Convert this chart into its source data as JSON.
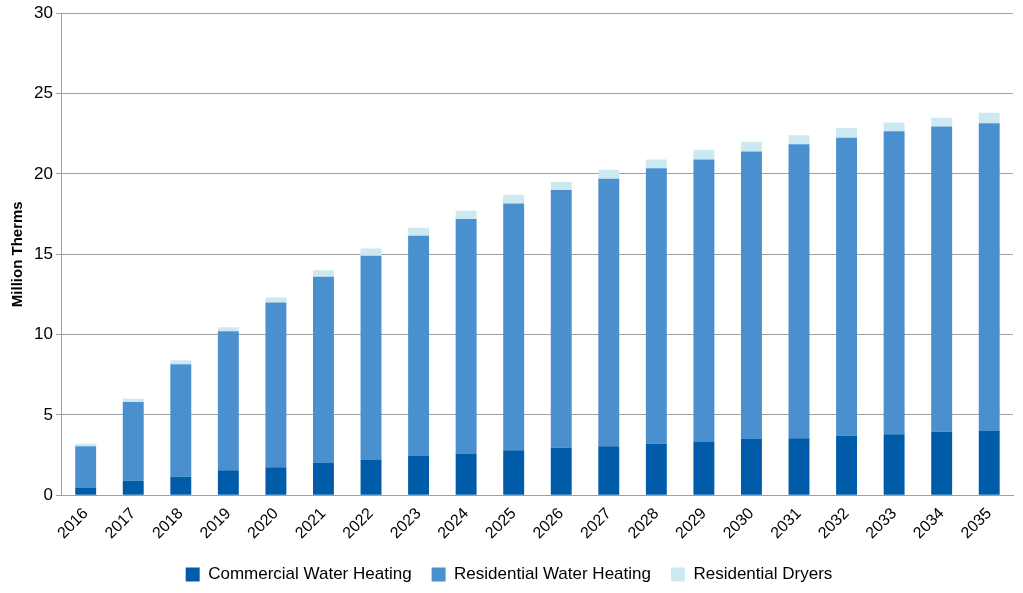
{
  "chart_data": {
    "type": "bar",
    "ylabel": "Million Therms",
    "stacked": true,
    "grid": "y",
    "legend": "bottom",
    "categories": [
      "2016",
      "2017",
      "2018",
      "2019",
      "2020",
      "2021",
      "2022",
      "2023",
      "2024",
      "2025",
      "2026",
      "2027",
      "2028",
      "2029",
      "2030",
      "2031",
      "2032",
      "2033",
      "2034",
      "2035"
    ],
    "series": [
      {
        "name": "Commercial Water Heating",
        "color": "#005ca9",
        "values": [
          0.45,
          0.9,
          1.15,
          1.55,
          1.75,
          2.0,
          2.2,
          2.45,
          2.6,
          2.8,
          2.95,
          3.05,
          3.2,
          3.35,
          3.5,
          3.55,
          3.7,
          3.8,
          3.95,
          4.0
        ]
      },
      {
        "name": "Residential Water Heating",
        "color": "#4a90cf",
        "values": [
          2.6,
          4.9,
          7.0,
          8.65,
          10.25,
          11.6,
          12.7,
          13.7,
          14.6,
          15.35,
          16.05,
          16.65,
          17.15,
          17.55,
          17.9,
          18.3,
          18.55,
          18.85,
          19.0,
          19.15
        ]
      },
      {
        "name": "Residential Dryers",
        "color": "#cce9f2",
        "values": [
          0.15,
          0.2,
          0.25,
          0.25,
          0.3,
          0.4,
          0.45,
          0.5,
          0.5,
          0.55,
          0.5,
          0.55,
          0.55,
          0.6,
          0.6,
          0.55,
          0.6,
          0.55,
          0.55,
          0.65
        ]
      }
    ],
    "ylim": [
      0,
      30
    ],
    "yticks": [
      0,
      5,
      10,
      15,
      20,
      25,
      30
    ]
  }
}
